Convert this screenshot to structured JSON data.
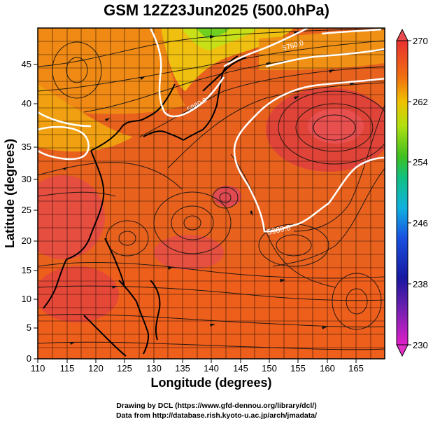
{
  "title": "GSM 12Z23Jun2025 (500.0hPa)",
  "xaxis": {
    "label": "Longitude (degrees)",
    "ticks": [
      "110",
      "115",
      "120",
      "125",
      "130",
      "135",
      "140",
      "145",
      "150",
      "155",
      "160",
      "165"
    ],
    "range": [
      110,
      170
    ]
  },
  "yaxis": {
    "label": "Latitude  (degrees)",
    "ticks": [
      "0",
      "5",
      "10",
      "15",
      "20",
      "25",
      "30",
      "35",
      "40",
      "45"
    ],
    "range": [
      0,
      50
    ]
  },
  "colorbar": {
    "ticks": [
      "270",
      "262",
      "254",
      "246",
      "238",
      "230"
    ],
    "range": [
      230,
      270
    ]
  },
  "contour_labels": [
    "5760.0",
    "5880.0",
    "5900.0"
  ],
  "footer": {
    "line1": "Drawing by DCL (https://www.gfd-dennou.org/library/dcl/)",
    "line2": "Data from http://database.rish.kyoto-u.ac.jp/arch/jmadata/"
  }
}
